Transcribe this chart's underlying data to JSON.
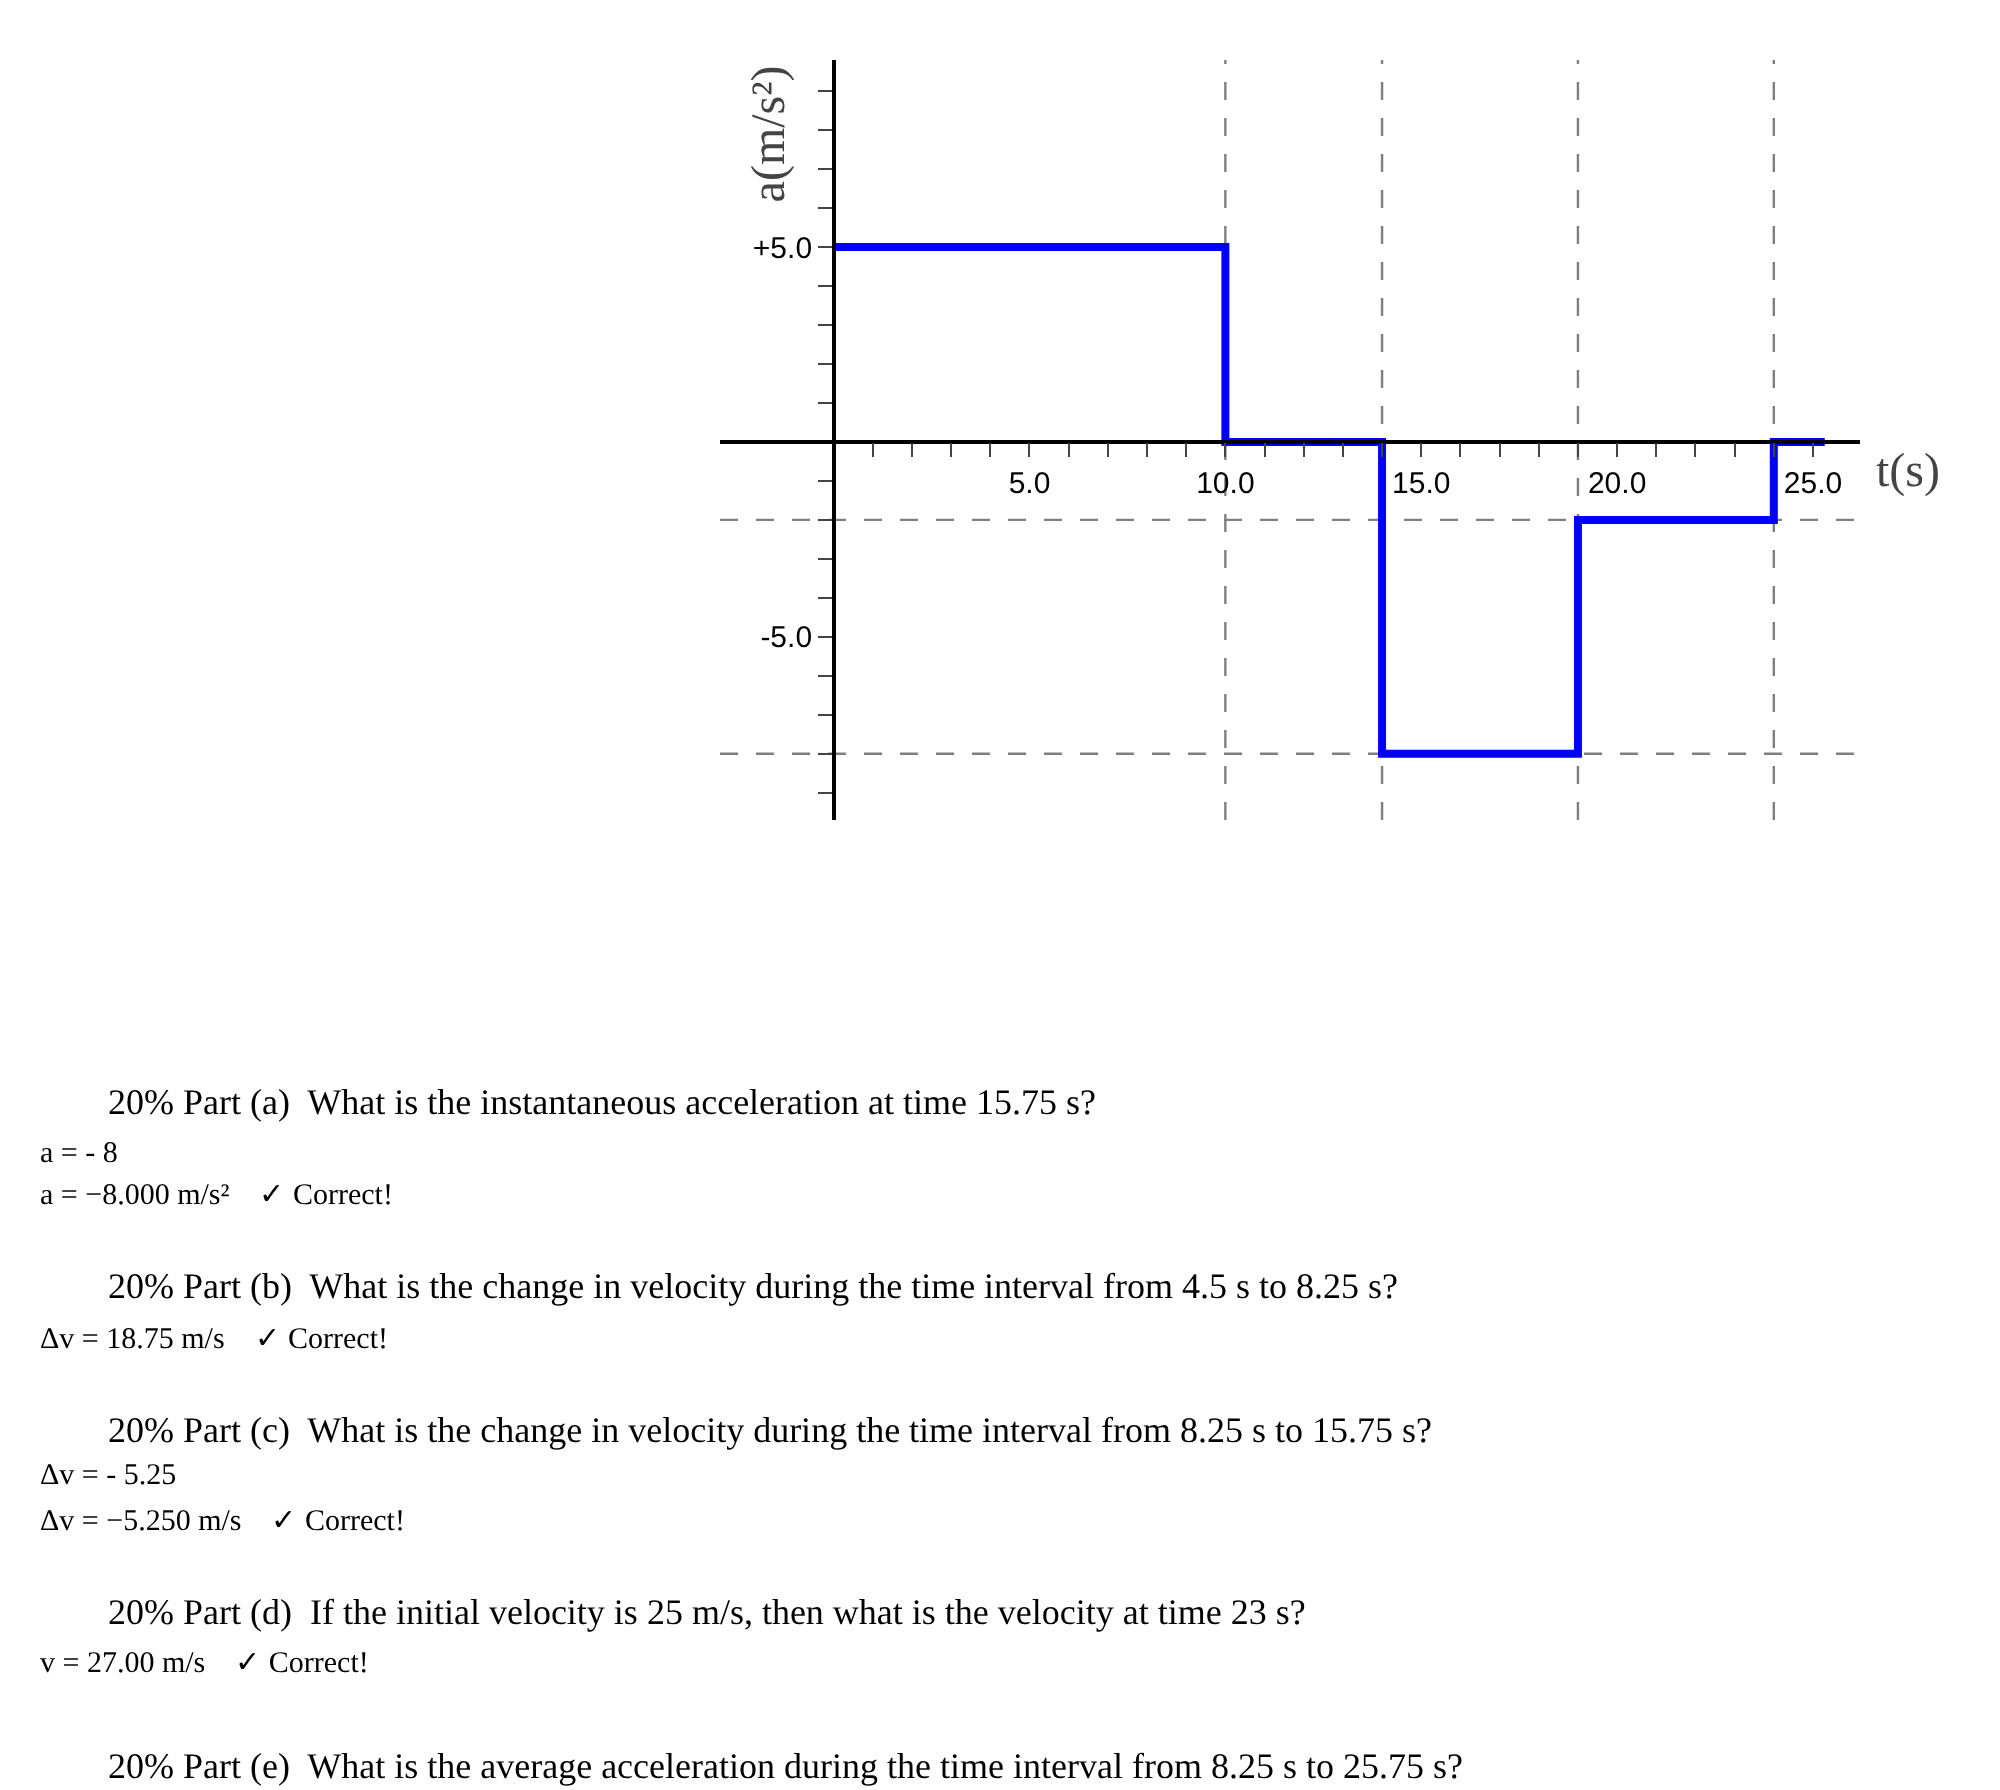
{
  "chart_data": {
    "type": "step",
    "x": [
      0,
      10,
      14,
      19,
      24,
      25.3
    ],
    "series": [
      {
        "color": "#0000ff",
        "values": [
          5,
          0,
          -8,
          -2,
          0,
          0
        ]
      }
    ],
    "xlabel": "t(s)",
    "ylabel": "a(m/s²)",
    "xlim": [
      -2.9,
      26.2
    ],
    "ylim": [
      -9.7,
      9.8
    ],
    "xticks": [
      {
        "value": 1,
        "label": null
      },
      {
        "value": 2,
        "label": null
      },
      {
        "value": 3,
        "label": null
      },
      {
        "value": 4,
        "label": null
      },
      {
        "value": 5,
        "label": "5.0"
      },
      {
        "value": 6,
        "label": null
      },
      {
        "value": 7,
        "label": null
      },
      {
        "value": 8,
        "label": null
      },
      {
        "value": 9,
        "label": null
      },
      {
        "value": 10,
        "label": "10.0"
      },
      {
        "value": 11,
        "label": null
      },
      {
        "value": 12,
        "label": null
      },
      {
        "value": 13,
        "label": null
      },
      {
        "value": 14,
        "label": null
      },
      {
        "value": 15,
        "label": "15.0"
      },
      {
        "value": 16,
        "label": null
      },
      {
        "value": 17,
        "label": null
      },
      {
        "value": 18,
        "label": null
      },
      {
        "value": 19,
        "label": null
      },
      {
        "value": 20,
        "label": "20.0"
      },
      {
        "value": 21,
        "label": null
      },
      {
        "value": 22,
        "label": null
      },
      {
        "value": 23,
        "label": null
      },
      {
        "value": 24,
        "label": null
      },
      {
        "value": 25,
        "label": "25.0"
      }
    ],
    "yticks": [
      {
        "value": -9,
        "label": null
      },
      {
        "value": -8,
        "label": null
      },
      {
        "value": -7,
        "label": null
      },
      {
        "value": -6,
        "label": null
      },
      {
        "value": -5,
        "label": "-5.0"
      },
      {
        "value": -4,
        "label": null
      },
      {
        "value": -3,
        "label": null
      },
      {
        "value": -2,
        "label": null
      },
      {
        "value": -1,
        "label": null
      },
      {
        "value": 1,
        "label": null
      },
      {
        "value": 2,
        "label": null
      },
      {
        "value": 3,
        "label": null
      },
      {
        "value": 4,
        "label": null
      },
      {
        "value": 5,
        "label": "+5.0"
      },
      {
        "value": 6,
        "label": null
      },
      {
        "value": 7,
        "label": null
      },
      {
        "value": 8,
        "label": null
      },
      {
        "value": 9,
        "label": null
      }
    ],
    "ref_lines": [
      {
        "axis": "x",
        "value": 10,
        "color": "#808080",
        "line_style": "dashed"
      },
      {
        "axis": "x",
        "value": 14,
        "color": "#808080",
        "line_style": "dashed"
      },
      {
        "axis": "x",
        "value": 19,
        "color": "#808080",
        "line_style": "dashed"
      },
      {
        "axis": "x",
        "value": 24,
        "color": "#808080",
        "line_style": "dashed"
      },
      {
        "axis": "y",
        "value": -2,
        "color": "#808080",
        "line_style": "dashed"
      },
      {
        "axis": "y",
        "value": -8,
        "color": "#808080",
        "line_style": "dashed"
      }
    ],
    "grid": false,
    "legend": false,
    "marker": "none",
    "line_style": "solid",
    "annotations": [
      "20% Part (a)  What is the instantaneous acceleration at time 15.75 s?",
      "a = - 8",
      "a = −8.000 m/s²    ✓ Correct!",
      "20% Part (b)  What is the change in velocity during the time interval from 4.5 s to 8.25 s?",
      "Δv = 18.75 m/s    ✓ Correct!",
      "20% Part (c)  What is the change in velocity during the time interval from 8.25 s to 15.75 s?",
      "Δv = - 5.25",
      "Δv = −5.250 m/s    ✓ Correct!",
      "20% Part (d)  If the initial velocity is 25 m/s, then what is the velocity at time 23 s?",
      "v = 27.00 m/s    ✓ Correct!",
      "20% Part (e)  What is the average acceleration during the time interval from 8.25 s to 25.75 s?"
    ]
  }
}
